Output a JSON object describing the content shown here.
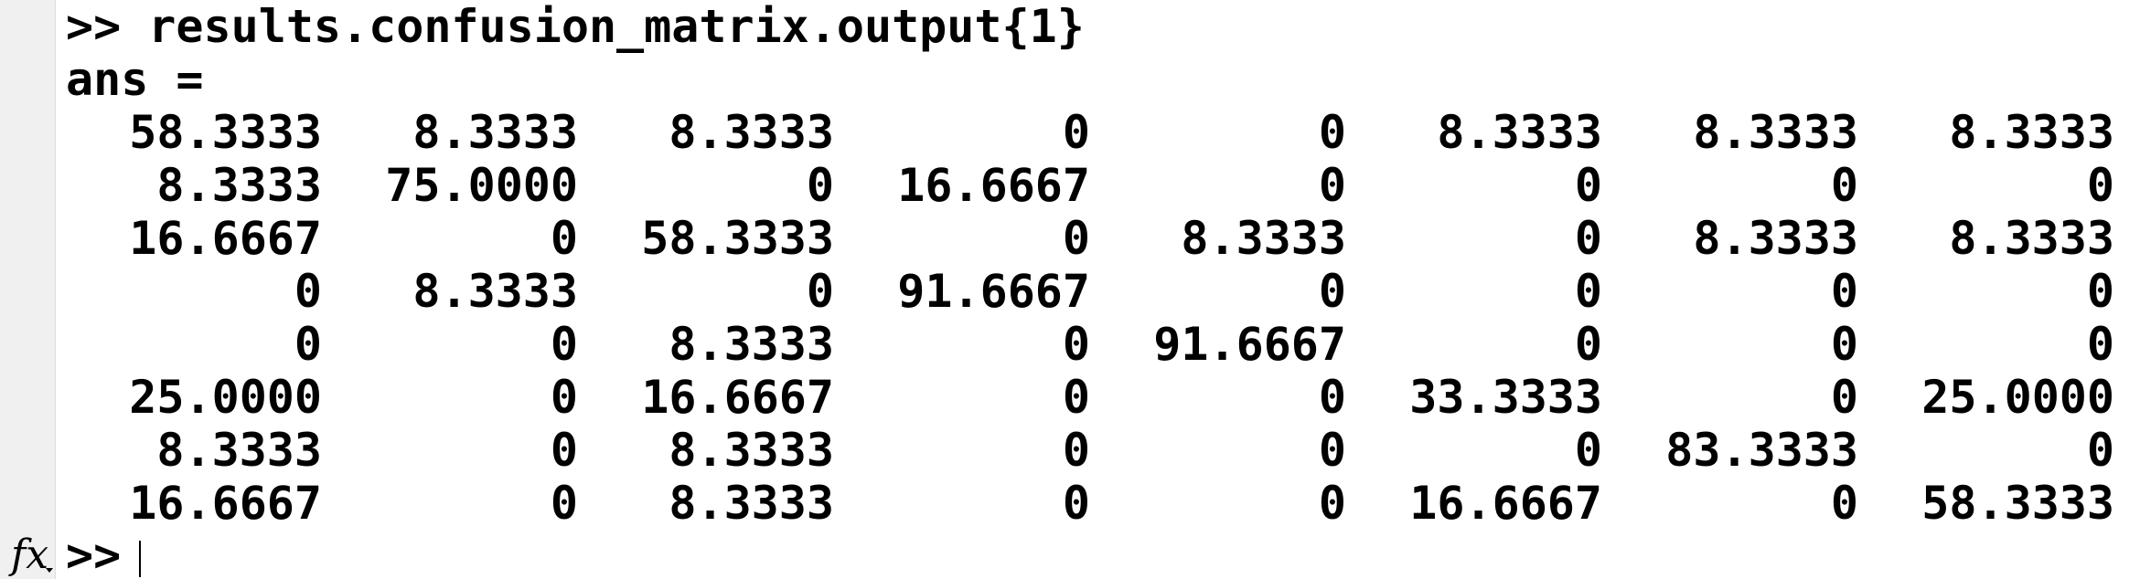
{
  "console": {
    "command_line": ">> results.confusion_matrix.output{1}",
    "ans_label": "ans =",
    "matrix": [
      [
        "58.3333",
        "8.3333",
        "8.3333",
        "0",
        "0",
        "8.3333",
        "8.3333",
        "8.3333"
      ],
      [
        "8.3333",
        "75.0000",
        "0",
        "16.6667",
        "0",
        "0",
        "0",
        "0"
      ],
      [
        "16.6667",
        "0",
        "58.3333",
        "0",
        "8.3333",
        "0",
        "8.3333",
        "8.3333"
      ],
      [
        "0",
        "8.3333",
        "0",
        "91.6667",
        "0",
        "0",
        "0",
        "0"
      ],
      [
        "0",
        "0",
        "8.3333",
        "0",
        "91.6667",
        "0",
        "0",
        "0"
      ],
      [
        "25.0000",
        "0",
        "16.6667",
        "0",
        "0",
        "33.3333",
        "0",
        "25.0000"
      ],
      [
        "8.3333",
        "0",
        "8.3333",
        "0",
        "0",
        "0",
        "83.3333",
        "0"
      ],
      [
        "16.6667",
        "0",
        "8.3333",
        "0",
        "0",
        "16.6667",
        "0",
        "58.3333"
      ]
    ],
    "fx_icon_label": "fx",
    "prompt": ">>"
  }
}
